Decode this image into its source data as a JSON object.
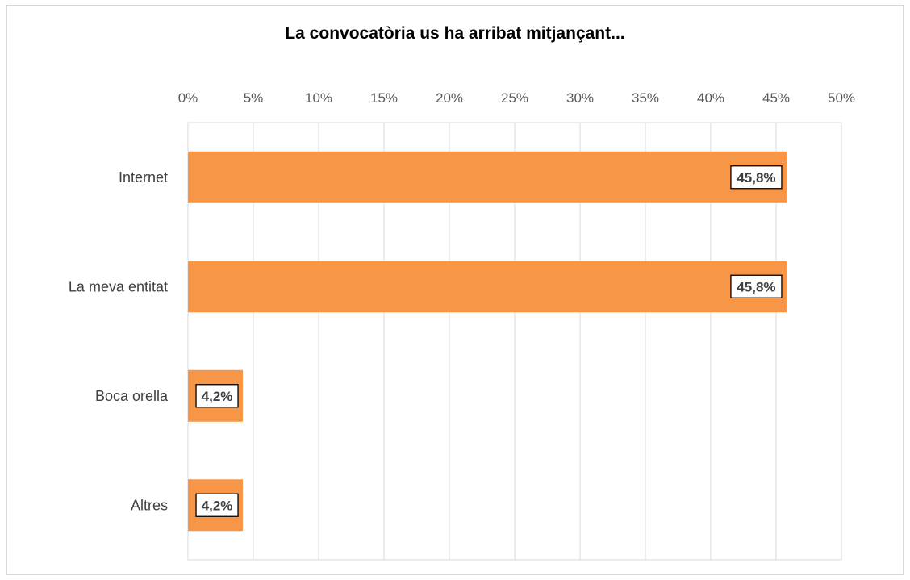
{
  "chart_data": {
    "type": "bar",
    "orientation": "horizontal",
    "title": "La convocatòria us ha arribat mitjançant...",
    "categories": [
      "Internet",
      "La meva entitat",
      "Boca orella",
      "Altres"
    ],
    "values": [
      45.8,
      45.8,
      4.2,
      4.2
    ],
    "data_labels": [
      "45,8%",
      "45,8%",
      "4,2%",
      "4,2%"
    ],
    "xlim": [
      0,
      50
    ],
    "xticks": [
      0,
      5,
      10,
      15,
      20,
      25,
      30,
      35,
      40,
      45,
      50
    ],
    "xtick_labels": [
      "0%",
      "5%",
      "10%",
      "15%",
      "20%",
      "25%",
      "30%",
      "35%",
      "40%",
      "45%",
      "50%"
    ],
    "xaxis_position": "top",
    "grid": true,
    "bar_color": "#f79646",
    "grid_color": "#d9d9d9"
  }
}
